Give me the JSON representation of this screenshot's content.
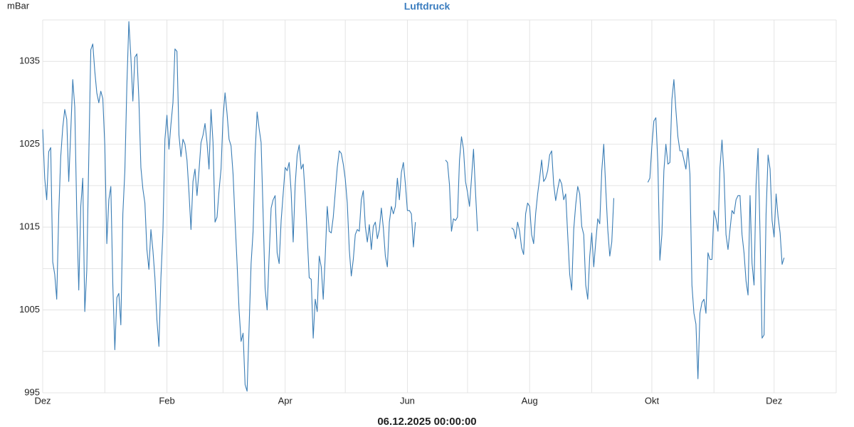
{
  "chart_data": {
    "type": "line",
    "title": "Luftdruck",
    "y_label": "mBar",
    "footer": "06.12.2025 00:00:00",
    "color": "#3a7db5",
    "values": [
      1026.8,
      1020.9,
      1018.3,
      1024.1,
      1024.6,
      1010.8,
      1009.3,
      1006.3,
      1016.6,
      1023.5,
      1027,
      1029.2,
      1028,
      1020.5,
      1026.5,
      1032.8,
      1029.5,
      1016.6,
      1007.4,
      1017.5,
      1020.9,
      1004.8,
      1009.8,
      1023.5,
      1036.4,
      1037.1,
      1033.8,
      1031.2,
      1030,
      1031.4,
      1030.5,
      1024.8,
      1013,
      1018.3,
      1019.9,
      1008,
      1000.2,
      1006.5,
      1007,
      1003.2,
      1016.6,
      1021.8,
      1032.1,
      1039.8,
      1035.5,
      1030.2,
      1035.5,
      1035.9,
      1030.4,
      1022.2,
      1019.6,
      1017.9,
      1012.3,
      1009.9,
      1014.7,
      1012.2,
      1008.9,
      1003.8,
      1000.6,
      1008.9,
      1014.5,
      1025.6,
      1028.5,
      1024.4,
      1027.4,
      1030,
      1036.5,
      1036.2,
      1026.1,
      1023.5,
      1025.6,
      1025,
      1023.1,
      1019.2,
      1014.7,
      1020.5,
      1022,
      1018.8,
      1021.8,
      1025.2,
      1026.1,
      1027.5,
      1025.2,
      1022,
      1029.2,
      1025.2,
      1015.6,
      1016.2,
      1019.4,
      1022,
      1028.2,
      1031.2,
      1028.7,
      1025.6,
      1024.8,
      1021.4,
      1015.8,
      1010.6,
      1005,
      1001.2,
      1002.2,
      996,
      995.2,
      1002.9,
      1010.6,
      1014.5,
      1023.9,
      1028.9,
      1026.9,
      1025.2,
      1016.6,
      1007.6,
      1005,
      1011.5,
      1017.3,
      1018.3,
      1018.8,
      1011.9,
      1010.6,
      1015.8,
      1019,
      1022.2,
      1021.8,
      1022.8,
      1019.2,
      1013.2,
      1020.1,
      1023.7,
      1024.9,
      1022,
      1022.6,
      1018.8,
      1014,
      1008.9,
      1008.7,
      1001.6,
      1006.3,
      1004.8,
      1011.5,
      1010.2,
      1006.3,
      1011.5,
      1017.5,
      1014.5,
      1014.3,
      1016.2,
      1019.2,
      1022.2,
      1024.2,
      1023.9,
      1022.6,
      1020.8,
      1017.9,
      1012.3,
      1009.1,
      1011.1,
      1014.1,
      1014.7,
      1014.5,
      1018.3,
      1019.4,
      1015.1,
      1013.2,
      1015.3,
      1012.3,
      1015.1,
      1015.6,
      1013.6,
      1014.7,
      1017.3,
      1014.9,
      1011.5,
      1010.2,
      1015.6,
      1017.5,
      1016.6,
      1017.5,
      1020.9,
      1018.3,
      1021.6,
      1022.8,
      1020.2,
      1017,
      1017,
      1016.6,
      1012.6,
      1015.6,
      null,
      null,
      null,
      null,
      null,
      null,
      null,
      null,
      null,
      null,
      null,
      null,
      null,
      null,
      1023.1,
      1022.8,
      1020.1,
      1014.5,
      1016,
      1015.8,
      1016.2,
      1023.1,
      1025.9,
      1024.4,
      1020.5,
      1019.2,
      1017.5,
      1020.9,
      1024.4,
      1019.2,
      1014.5,
      null,
      null,
      null,
      null,
      null,
      null,
      null,
      null,
      null,
      null,
      null,
      null,
      null,
      null,
      null,
      null,
      1014.9,
      1014.7,
      1013.6,
      1015.6,
      1014.5,
      1012.5,
      1011.7,
      1016.6,
      1017.9,
      1017.5,
      1014.1,
      1013,
      1016.6,
      1019,
      1020.9,
      1023.1,
      1020.5,
      1020.9,
      1021.8,
      1023.7,
      1024.2,
      1020.2,
      1018.2,
      1019.6,
      1020.8,
      1020.2,
      1018.3,
      1019,
      1014.1,
      1009.3,
      1007.4,
      1014.7,
      1017.7,
      1019.9,
      1019,
      1015.1,
      1014.1,
      1008,
      1006.3,
      1011.5,
      1014.3,
      1010.2,
      1013.2,
      1016,
      1015.4,
      1021.8,
      1025,
      1019.6,
      1014.7,
      1011.5,
      1013.2,
      1018.5,
      null,
      null,
      null,
      null,
      null,
      null,
      null,
      null,
      null,
      null,
      null,
      null,
      null,
      null,
      null,
      null,
      1020.4,
      1020.9,
      1024.8,
      1027.8,
      1028.2,
      1022.6,
      1011,
      1014.1,
      1021.8,
      1025,
      1022.6,
      1022.8,
      1030.4,
      1032.8,
      1029.1,
      1025.9,
      1024.2,
      1024.2,
      1023.1,
      1022,
      1024.5,
      1021.4,
      1008,
      1004.6,
      1003.3,
      996.7,
      1004.6,
      1005.9,
      1006.3,
      1004.6,
      1011.9,
      1011.1,
      1011.1,
      1017,
      1016,
      1014.5,
      1022.2,
      1025.5,
      1021.4,
      1014.1,
      1012.3,
      1014.7,
      1017,
      1016.6,
      1018.3,
      1018.8,
      1018.8,
      1014.1,
      1011.9,
      1008.5,
      1006.8,
      1018.8,
      1010.6,
      1008,
      1020.1,
      1024.5,
      1014.1,
      1001.6,
      1002,
      1016.6,
      1023.7,
      1022,
      1015.8,
      1013.8,
      1019,
      1016.2,
      1014.3,
      1010.5,
      1011.3
    ],
    "xlim": [
      0,
      396
    ],
    "xticks": [
      {
        "value": 0,
        "label": "Dez"
      },
      {
        "value": 62,
        "label": "Feb"
      },
      {
        "value": 121,
        "label": "Apr"
      },
      {
        "value": 182,
        "label": "Jun"
      },
      {
        "value": 243,
        "label": "Aug"
      },
      {
        "value": 304,
        "label": "Okt"
      },
      {
        "value": 365,
        "label": "Dez"
      }
    ],
    "xminor": [
      31,
      90,
      151,
      212,
      274,
      335,
      396
    ],
    "ylim": [
      995,
      1040
    ],
    "yticks": [
      995,
      1005,
      1015,
      1025,
      1035
    ],
    "yminor": [
      1000,
      1010,
      1020,
      1030,
      1040
    ],
    "grid": true
  }
}
